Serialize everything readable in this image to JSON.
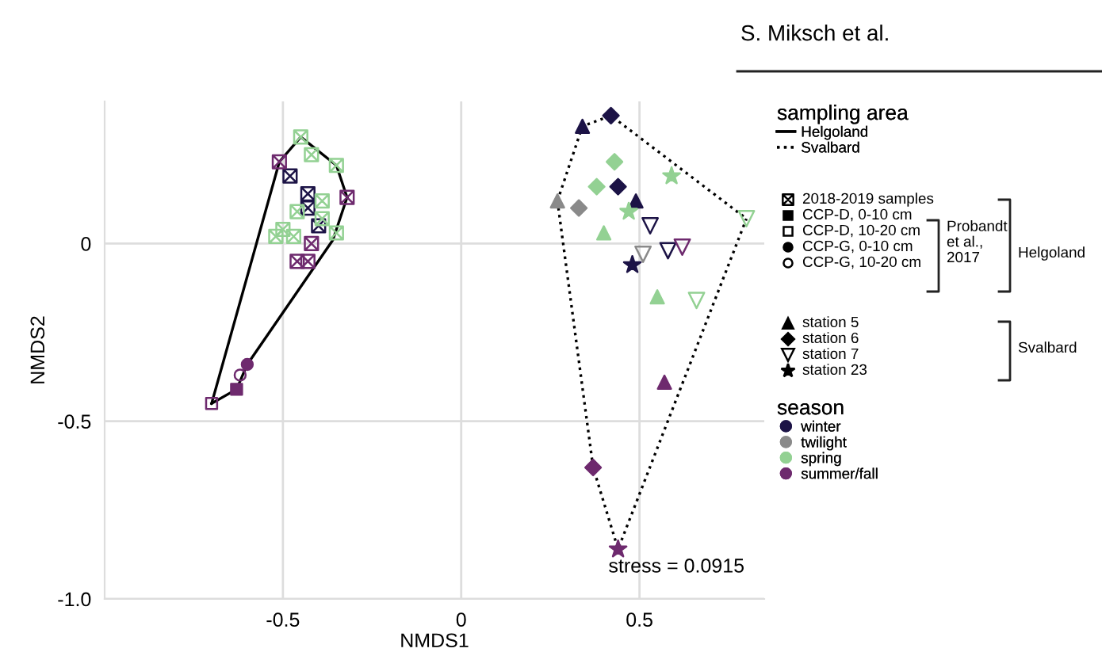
{
  "chart_data": {
    "type": "scatter",
    "xlabel": "NMDS1",
    "ylabel": "NMDS2",
    "xlim": [
      -1.0,
      0.85
    ],
    "ylim": [
      -1.0,
      0.4
    ],
    "xticks": [
      -0.5,
      0,
      0.5
    ],
    "yticks": [
      {
        "value": -1.0,
        "label": "-1.0"
      },
      -0.5,
      0
    ],
    "grid": true,
    "legend": "right",
    "annotations": [
      "sampling area",
      "season",
      "2018-2019 samples",
      "CCP-D, 0-10 cm",
      "CCP-D, 10-20 cm",
      "CCP-G, 0-10 cm",
      "CCP-G, 10-20 cm",
      "station 5",
      "station 6",
      "station 7",
      "station 23",
      "Probandt\net al.,\n2017",
      "Helgoland",
      "Svalbard",
      "stress = 0.0915",
      "S. Miksch et al."
    ],
    "series": [
      {
        "name": "Helgoland",
        "type": "line",
        "color": "#000000",
        "line_style": "solid",
        "x": [
          -0.7,
          -0.51,
          -0.45,
          -0.35,
          -0.32
        ],
        "values": [
          -0.45,
          0.23,
          0.3,
          0.22,
          0.13
        ]
      },
      {
        "type": "line",
        "color": "#000000",
        "line_style": "solid",
        "x": [
          -0.7,
          -0.63,
          -0.6,
          -0.36,
          -0.32
        ],
        "values": [
          -0.45,
          -0.41,
          -0.34,
          0.01,
          0.13
        ]
      },
      {
        "name": "Svalbard",
        "type": "line",
        "color": "#000000",
        "line_style": "dotted",
        "x": [
          0.27,
          0.34,
          0.42,
          0.8
        ],
        "values": [
          0.12,
          0.33,
          0.36,
          0.07
        ]
      },
      {
        "type": "line",
        "color": "#000000",
        "line_style": "dotted",
        "x": [
          0.27,
          0.37,
          0.44,
          0.8
        ],
        "values": [
          0.12,
          -0.63,
          -0.86,
          0.07
        ]
      },
      {
        "name": "winter",
        "marker": "cross",
        "color": "#1c1346",
        "x": [
          -0.48,
          -0.43,
          -0.43,
          -0.4
        ],
        "values": [
          0.19,
          0.14,
          0.1,
          0.05
        ]
      },
      {
        "name": "twilight",
        "marker": "triangle",
        "color": "#8a8a8a",
        "x": [
          0.27
        ],
        "values": [
          0.12
        ]
      },
      {
        "name": "spring",
        "marker": "cross",
        "color": "#93d193",
        "x": [
          -0.45,
          -0.42,
          -0.35,
          -0.39,
          -0.46,
          -0.39,
          -0.35,
          -0.52,
          -0.5,
          -0.47
        ],
        "values": [
          0.3,
          0.25,
          0.22,
          0.12,
          0.09,
          0.07,
          0.03,
          0.02,
          0.04,
          0.02
        ]
      },
      {
        "name": "summer/fall",
        "marker": "cross",
        "color": "#6e2a6e",
        "x": [
          -0.51,
          -0.32,
          -0.42,
          -0.46,
          -0.43
        ],
        "values": [
          0.23,
          0.13,
          0.0,
          -0.05,
          -0.05
        ]
      },
      {
        "marker": "square",
        "color": "#6e2a6e",
        "x": [
          -0.63
        ],
        "values": [
          -0.41
        ]
      },
      {
        "marker": "square-open",
        "color": "#6e2a6e",
        "x": [
          -0.7
        ],
        "values": [
          -0.45
        ]
      },
      {
        "marker": "circle",
        "color": "#6e2a6e",
        "x": [
          -0.6
        ],
        "values": [
          -0.34
        ]
      },
      {
        "marker": "circle-open",
        "color": "#6e2a6e",
        "x": [
          -0.62
        ],
        "values": [
          -0.37
        ]
      },
      {
        "marker": "triangle",
        "color": "#1c1346",
        "x": [
          0.34,
          0.49
        ],
        "values": [
          0.33,
          0.12
        ]
      },
      {
        "marker": "triangle",
        "color": "#93d193",
        "x": [
          0.4,
          0.55
        ],
        "values": [
          0.03,
          -0.15
        ]
      },
      {
        "marker": "triangle",
        "color": "#6e2a6e",
        "x": [
          0.57
        ],
        "values": [
          -0.39
        ]
      },
      {
        "marker": "diamond",
        "color": "#1c1346",
        "x": [
          0.42,
          0.44
        ],
        "values": [
          0.36,
          0.16
        ]
      },
      {
        "marker": "diamond",
        "color": "#93d193",
        "x": [
          0.43,
          0.38
        ],
        "values": [
          0.23,
          0.16
        ]
      },
      {
        "marker": "diamond",
        "color": "#8a8a8a",
        "x": [
          0.33
        ],
        "values": [
          0.1
        ]
      },
      {
        "marker": "diamond",
        "color": "#6e2a6e",
        "x": [
          0.37
        ],
        "values": [
          -0.63
        ]
      },
      {
        "marker": "triangle-down-open",
        "color": "#1c1346",
        "x": [
          0.53,
          0.58
        ],
        "values": [
          0.05,
          -0.02
        ]
      },
      {
        "marker": "triangle-down-open",
        "color": "#8a8a8a",
        "x": [
          0.51
        ],
        "values": [
          -0.03
        ]
      },
      {
        "marker": "triangle-down-open",
        "color": "#93d193",
        "x": [
          0.8,
          0.66
        ],
        "values": [
          0.07,
          -0.16
        ]
      },
      {
        "marker": "triangle-down-open",
        "color": "#6e2a6e",
        "x": [
          0.62
        ],
        "values": [
          -0.01
        ]
      },
      {
        "marker": "star",
        "color": "#1c1346",
        "x": [
          0.48
        ],
        "values": [
          -0.06
        ]
      },
      {
        "marker": "star",
        "color": "#93d193",
        "x": [
          0.59,
          0.47
        ],
        "values": [
          0.19,
          0.09
        ]
      },
      {
        "marker": "star",
        "color": "#6e2a6e",
        "x": [
          0.44
        ],
        "values": [
          -0.86
        ]
      }
    ]
  }
}
